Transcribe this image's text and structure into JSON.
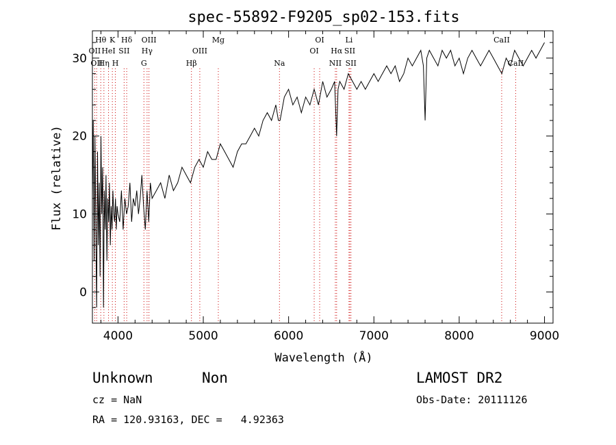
{
  "chart_data": {
    "type": "line",
    "title": "spec-55892-F9205_sp02-153.fits",
    "xlabel": "Wavelength (Å)",
    "ylabel": "Flux (relative)",
    "xlim": [
      3700,
      9100
    ],
    "ylim": [
      -4,
      33.5
    ],
    "xticks": [
      4000,
      5000,
      6000,
      7000,
      8000,
      9000
    ],
    "yticks": [
      0,
      10,
      20,
      30
    ],
    "grid": false,
    "line_color": "#000000",
    "marker_color": "#cc0000",
    "series": [
      {
        "x": [
          3700,
          3710,
          3720,
          3730,
          3740,
          3750,
          3760,
          3770,
          3780,
          3790,
          3800,
          3810,
          3820,
          3830,
          3840,
          3850,
          3860,
          3870,
          3880,
          3890,
          3900,
          3910,
          3920,
          3930,
          3940,
          3950,
          3960,
          3970,
          3980,
          3990,
          4000,
          4020,
          4040,
          4060,
          4080,
          4100,
          4120,
          4140,
          4160,
          4180,
          4200,
          4220,
          4240,
          4260,
          4280,
          4300,
          4320,
          4340,
          4360,
          4380,
          4400,
          4450,
          4500,
          4550,
          4600,
          4650,
          4700,
          4750,
          4800,
          4850,
          4900,
          4950,
          5000,
          5050,
          5100,
          5150,
          5200,
          5250,
          5300,
          5350,
          5400,
          5450,
          5500,
          5550,
          5600,
          5650,
          5700,
          5750,
          5800,
          5850,
          5880,
          5900,
          5950,
          6000,
          6050,
          6100,
          6150,
          6200,
          6250,
          6300,
          6350,
          6400,
          6450,
          6500,
          6540,
          6563,
          6580,
          6600,
          6650,
          6700,
          6750,
          6800,
          6850,
          6900,
          6950,
          7000,
          7050,
          7100,
          7150,
          7200,
          7250,
          7300,
          7350,
          7400,
          7450,
          7500,
          7550,
          7580,
          7600,
          7620,
          7650,
          7700,
          7750,
          7800,
          7850,
          7900,
          7950,
          8000,
          8050,
          8100,
          8150,
          8200,
          8250,
          8300,
          8350,
          8400,
          8450,
          8500,
          8550,
          8600,
          8650,
          8700,
          8750,
          8800,
          8850,
          8900,
          8950,
          9000
        ],
        "y": [
          12,
          22,
          4,
          20,
          8,
          -2,
          18,
          6,
          14,
          2,
          20,
          10,
          16,
          -2,
          13,
          8,
          15,
          4,
          12,
          9,
          14,
          6,
          11,
          8,
          13,
          10,
          9,
          12,
          8,
          11,
          10,
          9,
          13,
          8,
          12,
          10,
          11,
          14,
          9,
          12,
          11,
          13,
          10,
          12,
          15,
          11,
          8,
          13,
          9,
          14,
          12,
          13,
          14,
          12,
          15,
          13,
          14,
          16,
          15,
          14,
          16,
          17,
          16,
          18,
          17,
          17,
          19,
          18,
          17,
          16,
          18,
          19,
          19,
          20,
          21,
          20,
          22,
          23,
          22,
          24,
          22,
          22,
          25,
          26,
          24,
          25,
          23,
          25,
          24,
          26,
          24,
          27,
          25,
          26,
          27,
          20,
          26,
          27,
          26,
          28,
          27,
          26,
          27,
          26,
          27,
          28,
          27,
          28,
          29,
          28,
          29,
          27,
          28,
          30,
          29,
          30,
          31,
          29,
          22,
          30,
          31,
          30,
          29,
          31,
          30,
          31,
          29,
          30,
          28,
          30,
          31,
          30,
          29,
          30,
          31,
          30,
          29,
          28,
          30,
          29,
          31,
          30,
          29,
          30,
          31,
          30,
          31,
          32
        ]
      }
    ],
    "line_markers": [
      {
        "wl": 3727,
        "row": 1,
        "label": "OII"
      },
      {
        "wl": 3750,
        "row": 2,
        "label": "OII"
      },
      {
        "wl": 3798,
        "row": 0,
        "label": "Hθ"
      },
      {
        "wl": 3835,
        "row": 2,
        "label": "Hη"
      },
      {
        "wl": 3889,
        "row": 1,
        "label": "HeI"
      },
      {
        "wl": 3934,
        "row": 0,
        "label": "K"
      },
      {
        "wl": 3969,
        "row": 2,
        "label": "H"
      },
      {
        "wl": 4072,
        "row": 1,
        "label": "SII"
      },
      {
        "wl": 4102,
        "row": 0,
        "label": "Hδ"
      },
      {
        "wl": 4304,
        "row": 2,
        "label": "G"
      },
      {
        "wl": 4341,
        "row": 1,
        "label": "Hγ"
      },
      {
        "wl": 4363,
        "row": 0,
        "label": "OIII"
      },
      {
        "wl": 4861,
        "row": 2,
        "label": "Hβ"
      },
      {
        "wl": 4959,
        "row": 1,
        "label": "OIII"
      },
      {
        "wl": 5176,
        "row": 0,
        "label": "Mg"
      },
      {
        "wl": 5893,
        "row": 2,
        "label": "Na"
      },
      {
        "wl": 6300,
        "row": 1,
        "label": "OI"
      },
      {
        "wl": 6364,
        "row": 0,
        "label": "OI"
      },
      {
        "wl": 6548,
        "row": 2,
        "label": "NII"
      },
      {
        "wl": 6563,
        "row": 1,
        "label": "Hα"
      },
      {
        "wl": 6708,
        "row": 0,
        "label": "Li"
      },
      {
        "wl": 6717,
        "row": 1,
        "label": "SII"
      },
      {
        "wl": 6731,
        "row": 2,
        "label": "SII"
      },
      {
        "wl": 8498,
        "row": 0,
        "label": "CaII"
      },
      {
        "wl": 8662,
        "row": 2,
        "label": "CaII"
      }
    ]
  },
  "footer": {
    "class_label": "Unknown",
    "subclass_label": "Non",
    "survey_label": "LAMOST DR2",
    "cz_text": "cz = NaN",
    "obs_date_text": "Obs-Date: 20111126",
    "radec_text": "RA = 120.93163, DEC =   4.92363"
  }
}
